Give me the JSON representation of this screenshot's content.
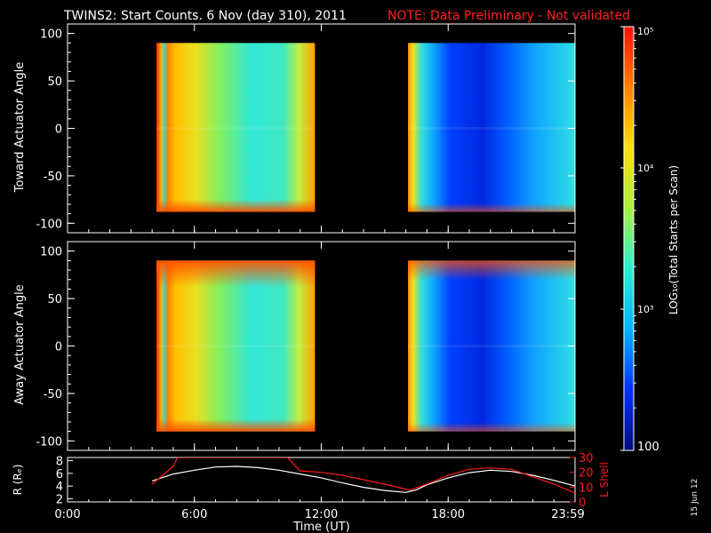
{
  "header": {
    "title": "TWINS2: Start Counts.  6 Nov (day 310), 2011",
    "note": "NOTE: Data Preliminary - Not validated"
  },
  "side_date": "15 Jun 12",
  "colors": {
    "background": "#000000",
    "axes": "#ffffff",
    "note": "#ff2020",
    "lshell": "#ff1a1a",
    "radius": "#ffffff"
  },
  "chart_data": [
    {
      "type": "heatmap",
      "panel": "top",
      "ylabel": "Toward Actuator Angle",
      "ylim": [
        -110,
        110
      ],
      "yticks": [
        -100,
        -50,
        0,
        50,
        100
      ],
      "xlim": [
        0,
        24
      ],
      "data_blocks": [
        {
          "t_start": 4.2,
          "t_end": 11.7,
          "angle_min": -88,
          "angle_max": 90,
          "level": "high-to-mid (orange to cyan)"
        },
        {
          "t_start": 16.1,
          "t_end": 24.0,
          "angle_min": -88,
          "angle_max": 90,
          "level": "low-to-mid (blue to cyan)"
        }
      ]
    },
    {
      "type": "heatmap",
      "panel": "middle",
      "ylabel": "Away Actuator Angle",
      "ylim": [
        -110,
        110
      ],
      "yticks": [
        -100,
        -50,
        0,
        50,
        100
      ],
      "xlim": [
        0,
        24
      ],
      "data_blocks": [
        {
          "t_start": 4.2,
          "t_end": 11.7,
          "angle_min": -90,
          "angle_max": 90,
          "level": "high-to-mid (orange to cyan)"
        },
        {
          "t_start": 16.1,
          "t_end": 24.0,
          "angle_min": -90,
          "angle_max": 90,
          "level": "low-to-mid (blue to cyan)"
        }
      ]
    },
    {
      "type": "colorbar",
      "label": "LOG₁₀(Total Starts per Scan)",
      "scale": "log",
      "range": [
        100,
        100000
      ],
      "ticks": [
        "10⁵",
        "10⁴",
        "10³",
        "100"
      ],
      "colormap": [
        "#000a7a",
        "#0030ff",
        "#00b4ff",
        "#2af0d0",
        "#a8f040",
        "#ffe000",
        "#ff8000",
        "#ff1000"
      ]
    },
    {
      "type": "line",
      "panel": "bottom",
      "xlabel": "Time (UT)",
      "xlim": [
        0,
        24
      ],
      "xticks": [
        "0:00",
        "6:00",
        "12:00",
        "18:00",
        "23:59"
      ],
      "left_axis": {
        "label": "R (Rₑ)",
        "ylim": [
          1.5,
          8.5
        ],
        "yticks": [
          2,
          4,
          6,
          8
        ]
      },
      "right_axis": {
        "label": "L Shell",
        "ylim": [
          0,
          30
        ],
        "yticks": [
          0,
          10,
          20,
          30
        ]
      },
      "series": [
        {
          "axis": "left",
          "x": [
            4.0,
            5.0,
            6.0,
            7.0,
            8.0,
            9.0,
            10.0,
            11.0,
            12.0,
            13.0,
            14.0,
            15.0,
            16.0,
            16.5,
            17.0,
            18.0,
            19.0,
            20.0,
            21.0,
            22.0,
            23.0,
            24.0
          ],
          "y": [
            4.8,
            5.9,
            6.5,
            7.0,
            7.1,
            6.9,
            6.5,
            5.9,
            5.3,
            4.5,
            3.8,
            3.3,
            3.0,
            3.4,
            4.2,
            5.3,
            6.1,
            6.5,
            6.3,
            5.7,
            4.9,
            4.0
          ]
        },
        {
          "axis": "right",
          "x": [
            4.0,
            5.0,
            5.2,
            10.4,
            11.0,
            12.0,
            13.0,
            14.0,
            15.0,
            16.2,
            17.0,
            18.0,
            19.0,
            20.0,
            21.0,
            22.0,
            23.0,
            24.0
          ],
          "y": [
            12,
            24,
            30,
            30,
            21,
            20,
            18,
            15,
            12,
            8,
            12,
            18,
            22,
            23,
            22,
            17,
            12,
            6
          ]
        }
      ]
    }
  ]
}
